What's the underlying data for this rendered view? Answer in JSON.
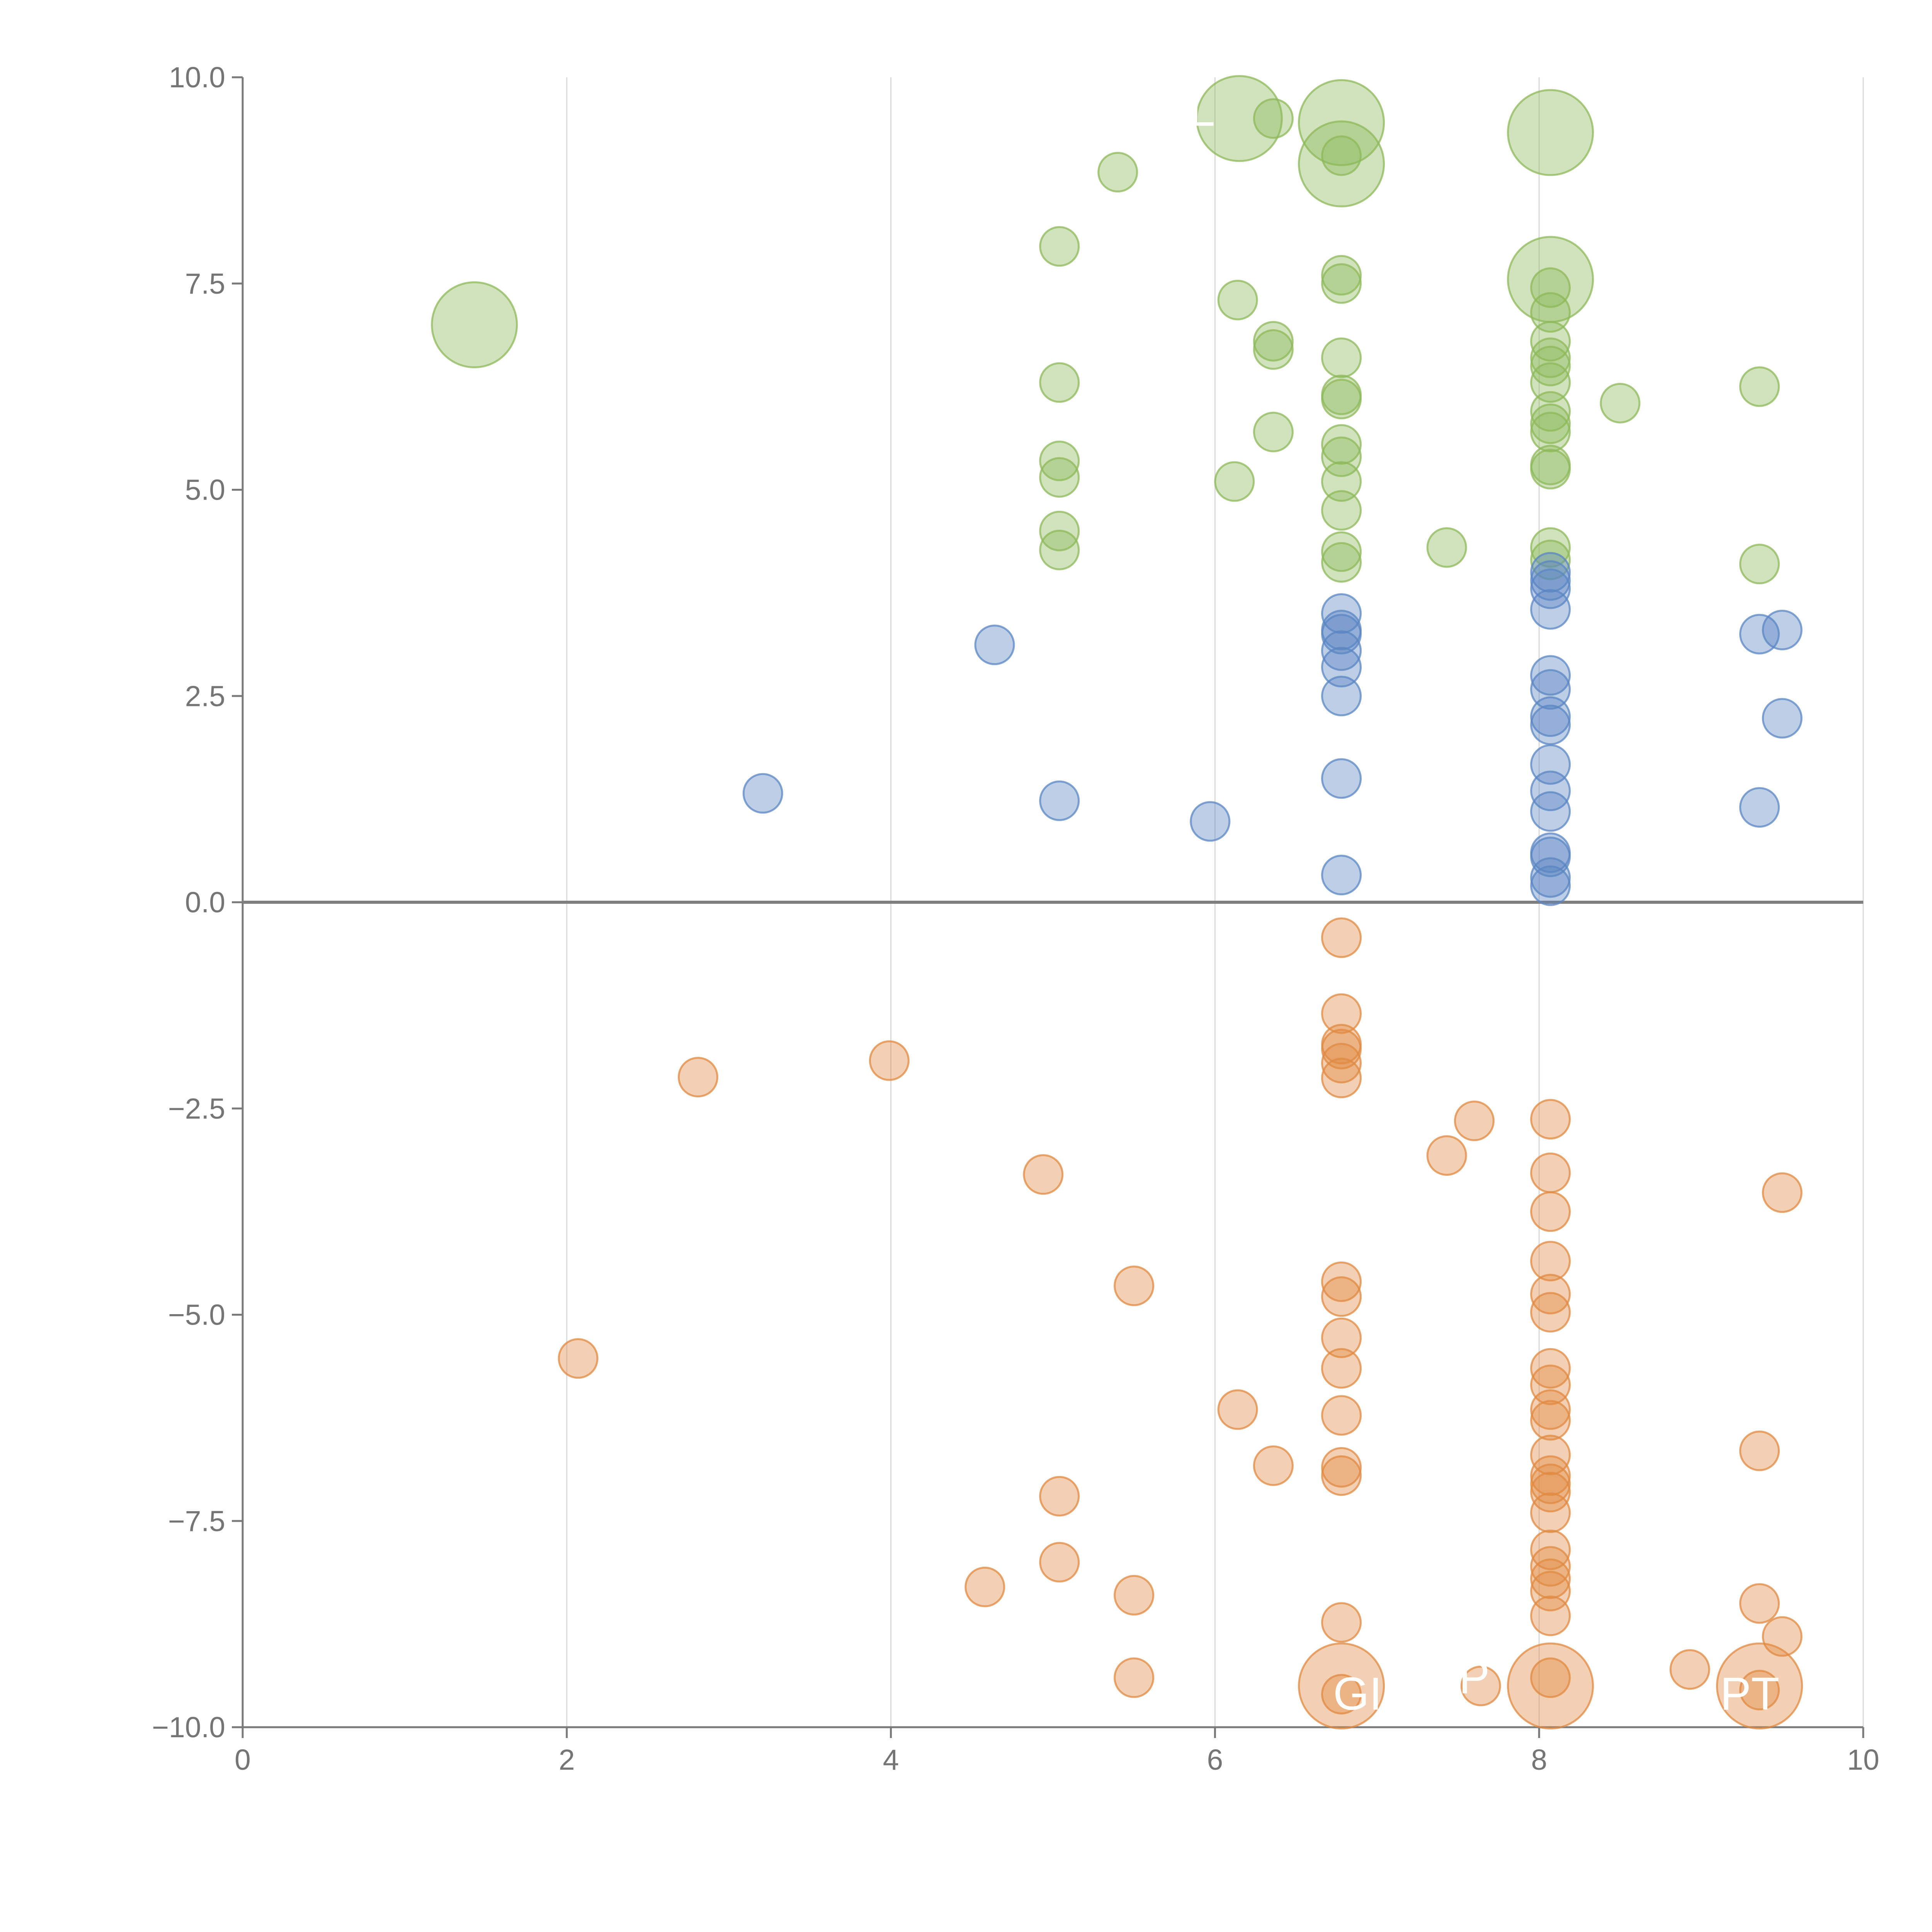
{
  "colors": {
    "positive_up": "#8db85a",
    "positive_low": "#5b85c3",
    "negative": "#e08a42",
    "axis": "#7a7a7a",
    "grid": "#d9d9d9",
    "tick_text": "#757575",
    "zero_line": "#7f7f7f"
  },
  "chart_data": {
    "type": "scatter",
    "title": "",
    "xlabel": "",
    "ylabel": "",
    "xlim": [
      0,
      10
    ],
    "ylim": [
      -10,
      10
    ],
    "xticks": [
      "0",
      "2",
      "4",
      "6",
      "8",
      "10"
    ],
    "yticks": [
      "10.0",
      "7.5",
      "5.0",
      "2.5",
      "0.0",
      "−2.5",
      "−5.0",
      "−7.5",
      "−10.0"
    ],
    "ytick_values": [
      10,
      7.5,
      5,
      2.5,
      0,
      -2.5,
      -5,
      -7.5,
      -10
    ],
    "xtick_values": [
      0,
      2,
      4,
      6,
      8,
      10
    ],
    "grid_x": true,
    "zero_line": true,
    "legend": "none",
    "series": [
      {
        "name": "upper-green",
        "color": "positive_up",
        "points": [
          [
            1.43,
            7.0,
            2.2
          ],
          [
            5.4,
            8.85,
            1
          ],
          [
            6.15,
            9.5,
            2.2
          ],
          [
            6.36,
            9.5,
            1
          ],
          [
            6.78,
            9.45,
            2.2
          ],
          [
            6.78,
            9.05,
            1
          ],
          [
            6.78,
            8.95,
            2.2
          ],
          [
            8.07,
            9.33,
            2.2
          ],
          [
            5.04,
            7.95,
            1
          ],
          [
            6.14,
            7.3,
            1
          ],
          [
            6.78,
            7.6,
            1
          ],
          [
            6.78,
            7.5,
            1
          ],
          [
            8.07,
            7.55,
            2.2
          ],
          [
            8.07,
            7.45,
            1
          ],
          [
            8.07,
            7.15,
            1
          ],
          [
            6.36,
            6.8,
            1
          ],
          [
            6.36,
            6.7,
            1
          ],
          [
            6.78,
            6.6,
            1
          ],
          [
            8.07,
            6.8,
            1
          ],
          [
            8.07,
            6.6,
            1
          ],
          [
            8.07,
            6.5,
            1
          ],
          [
            8.07,
            6.3,
            1
          ],
          [
            5.04,
            6.3,
            1
          ],
          [
            6.78,
            6.15,
            1
          ],
          [
            6.78,
            6.1,
            1
          ],
          [
            8.5,
            6.05,
            1
          ],
          [
            9.36,
            6.25,
            1
          ],
          [
            8.07,
            5.95,
            1
          ],
          [
            8.07,
            5.8,
            1
          ],
          [
            8.07,
            5.7,
            1
          ],
          [
            6.36,
            5.7,
            1
          ],
          [
            6.78,
            5.55,
            1
          ],
          [
            6.78,
            5.4,
            1
          ],
          [
            5.04,
            5.35,
            1
          ],
          [
            5.04,
            5.15,
            1
          ],
          [
            6.12,
            5.1,
            1
          ],
          [
            6.78,
            5.1,
            1
          ],
          [
            8.07,
            5.3,
            1
          ],
          [
            8.07,
            5.25,
            1
          ],
          [
            6.78,
            4.75,
            1
          ],
          [
            5.04,
            4.5,
            1
          ],
          [
            5.04,
            4.27,
            1
          ],
          [
            6.78,
            4.25,
            1
          ],
          [
            6.78,
            4.12,
            1
          ],
          [
            7.43,
            4.3,
            1
          ],
          [
            8.07,
            4.3,
            1
          ],
          [
            8.07,
            4.15,
            1
          ],
          [
            9.36,
            4.1,
            1
          ]
        ]
      },
      {
        "name": "lower-blue",
        "color": "positive_low",
        "points": [
          [
            8.07,
            4.0,
            1
          ],
          [
            8.07,
            3.9,
            1
          ],
          [
            8.07,
            3.8,
            1
          ],
          [
            8.07,
            3.55,
            1
          ],
          [
            6.78,
            3.5,
            1
          ],
          [
            6.78,
            3.3,
            1
          ],
          [
            6.78,
            3.25,
            1
          ],
          [
            6.78,
            3.05,
            1
          ],
          [
            6.78,
            2.85,
            1
          ],
          [
            6.78,
            2.5,
            1
          ],
          [
            4.64,
            3.12,
            1
          ],
          [
            9.36,
            3.25,
            1
          ],
          [
            9.5,
            3.3,
            1
          ],
          [
            8.07,
            2.75,
            1
          ],
          [
            8.07,
            2.58,
            1
          ],
          [
            8.07,
            2.25,
            1
          ],
          [
            8.07,
            2.15,
            1
          ],
          [
            9.5,
            2.23,
            1
          ],
          [
            8.07,
            1.67,
            1
          ],
          [
            8.07,
            1.35,
            1
          ],
          [
            8.07,
            1.1,
            1
          ],
          [
            6.78,
            1.5,
            1
          ],
          [
            3.21,
            1.32,
            1
          ],
          [
            5.04,
            1.23,
            1
          ],
          [
            5.97,
            0.98,
            1
          ],
          [
            9.36,
            1.15,
            1
          ],
          [
            8.07,
            0.6,
            1
          ],
          [
            8.07,
            0.55,
            1
          ],
          [
            8.07,
            0.3,
            1
          ],
          [
            8.07,
            0.2,
            1
          ],
          [
            6.78,
            0.33,
            1
          ]
        ]
      },
      {
        "name": "negative-orange",
        "color": "negative",
        "points": [
          [
            6.78,
            -0.43,
            1
          ],
          [
            6.78,
            -1.35,
            1
          ],
          [
            6.78,
            -1.72,
            1
          ],
          [
            6.78,
            -1.78,
            1
          ],
          [
            6.78,
            -1.95,
            1
          ],
          [
            6.78,
            -2.13,
            1
          ],
          [
            2.81,
            -2.12,
            1
          ],
          [
            3.99,
            -1.92,
            1
          ],
          [
            7.6,
            -2.65,
            1
          ],
          [
            8.07,
            -2.63,
            1
          ],
          [
            7.43,
            -3.07,
            1
          ],
          [
            4.94,
            -3.3,
            1
          ],
          [
            8.07,
            -3.28,
            1
          ],
          [
            9.5,
            -3.52,
            1
          ],
          [
            8.07,
            -3.75,
            1
          ],
          [
            8.07,
            -4.35,
            1
          ],
          [
            6.78,
            -4.6,
            1
          ],
          [
            6.78,
            -4.78,
            1
          ],
          [
            8.07,
            -4.75,
            1
          ],
          [
            8.07,
            -4.97,
            1
          ],
          [
            5.5,
            -4.65,
            1
          ],
          [
            6.78,
            -5.28,
            1
          ],
          [
            2.07,
            -5.53,
            1
          ],
          [
            6.78,
            -5.65,
            1
          ],
          [
            8.07,
            -5.65,
            1
          ],
          [
            8.07,
            -5.85,
            1
          ],
          [
            8.07,
            -6.15,
            1
          ],
          [
            8.07,
            -6.28,
            1
          ],
          [
            6.14,
            -6.15,
            1
          ],
          [
            6.78,
            -6.22,
            1
          ],
          [
            9.36,
            -6.65,
            1
          ],
          [
            8.07,
            -6.7,
            1
          ],
          [
            6.36,
            -6.83,
            1
          ],
          [
            6.78,
            -6.85,
            1
          ],
          [
            6.78,
            -6.95,
            1
          ],
          [
            8.07,
            -6.95,
            1
          ],
          [
            8.07,
            -7.05,
            1
          ],
          [
            8.07,
            -7.15,
            1
          ],
          [
            5.04,
            -7.2,
            1
          ],
          [
            8.07,
            -7.4,
            1
          ],
          [
            8.07,
            -7.85,
            1
          ],
          [
            8.07,
            -8.05,
            1
          ],
          [
            8.07,
            -8.2,
            1
          ],
          [
            8.07,
            -8.35,
            1
          ],
          [
            4.58,
            -8.3,
            1
          ],
          [
            5.04,
            -8.0,
            1
          ],
          [
            5.5,
            -8.4,
            1
          ],
          [
            9.36,
            -8.5,
            1
          ],
          [
            8.07,
            -8.65,
            1
          ],
          [
            6.78,
            -8.73,
            1
          ],
          [
            9.5,
            -8.9,
            1
          ],
          [
            5.5,
            -9.4,
            1
          ],
          [
            8.93,
            -9.3,
            1
          ],
          [
            7.64,
            -9.5,
            1
          ],
          [
            8.07,
            -9.4,
            1
          ],
          [
            6.78,
            -9.5,
            2.2
          ],
          [
            6.78,
            -9.6,
            1
          ],
          [
            8.07,
            -9.5,
            2.2
          ],
          [
            9.36,
            -9.5,
            2.2
          ],
          [
            9.36,
            -9.55,
            1
          ]
        ]
      }
    ],
    "annotations": [
      {
        "text": "L",
        "x": 6.0,
        "y": 9.6,
        "anchor": "end"
      },
      {
        "text": "GI",
        "x": 6.88,
        "y": -9.6,
        "anchor": "middle"
      },
      {
        "text": "P",
        "x": 7.6,
        "y": -9.4,
        "anchor": "middle"
      },
      {
        "text": "PT",
        "x": 9.3,
        "y": -9.6,
        "anchor": "middle"
      }
    ]
  }
}
